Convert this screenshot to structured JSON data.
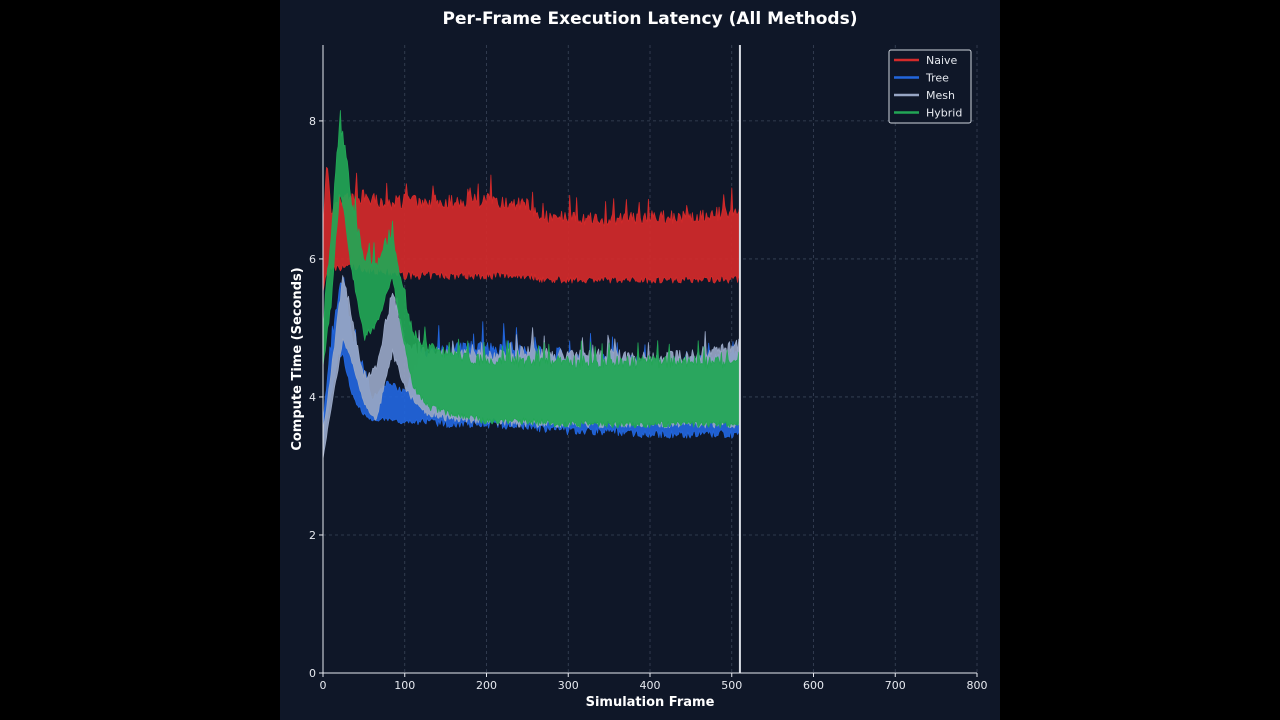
{
  "chart_data": {
    "type": "line",
    "title": "Per-Frame Execution Latency (All Methods)",
    "xlabel": "Simulation Frame",
    "ylabel": "Compute Time (Seconds)",
    "xlim": [
      0,
      800
    ],
    "ylim": [
      0,
      9.1
    ],
    "x_ticks": [
      0,
      100,
      200,
      300,
      400,
      500,
      600,
      700,
      800
    ],
    "y_ticks": [
      0,
      2,
      4,
      6,
      8
    ],
    "grid": true,
    "legend_position": "top-right",
    "current_frame_marker": 510,
    "colors": {
      "background": "#0f1728",
      "page": "#000000",
      "grid": "#3a4458",
      "axis": "#e6e9ef",
      "marker": "#d9dde5"
    },
    "series": [
      {
        "name": "Naive",
        "color": "#d42a2a",
        "x": [
          0,
          5,
          10,
          20,
          30,
          50,
          80,
          100,
          150,
          200,
          250,
          270,
          300,
          350,
          400,
          450,
          510
        ],
        "y_low": [
          5.5,
          5.7,
          5.8,
          5.8,
          5.85,
          5.8,
          5.75,
          5.7,
          5.7,
          5.7,
          5.7,
          5.65,
          5.65,
          5.65,
          5.65,
          5.65,
          5.65
        ],
        "y_high": [
          6.4,
          7.7,
          6.8,
          6.95,
          7.0,
          7.0,
          6.9,
          6.95,
          6.95,
          6.95,
          6.9,
          6.7,
          6.7,
          6.65,
          6.7,
          6.7,
          6.8
        ]
      },
      {
        "name": "Tree",
        "color": "#2266dd",
        "x": [
          0,
          10,
          20,
          25,
          35,
          50,
          60,
          80,
          100,
          120,
          150,
          200,
          250,
          300,
          350,
          400,
          450,
          510
        ],
        "y_low": [
          3.3,
          4.0,
          4.6,
          4.5,
          4.0,
          3.7,
          3.65,
          3.65,
          3.6,
          3.6,
          3.55,
          3.55,
          3.5,
          3.45,
          3.45,
          3.4,
          3.4,
          3.4
        ],
        "y_high": [
          3.7,
          4.8,
          5.7,
          5.8,
          5.0,
          4.5,
          4.0,
          4.3,
          4.1,
          4.7,
          4.8,
          4.85,
          4.8,
          4.7,
          4.65,
          4.6,
          4.6,
          4.7
        ]
      },
      {
        "name": "Mesh",
        "color": "#97a6c4",
        "x": [
          0,
          10,
          25,
          35,
          50,
          65,
          85,
          100,
          120,
          150,
          200,
          250,
          300,
          350,
          400,
          450,
          510
        ],
        "y_low": [
          3.1,
          3.8,
          4.8,
          4.5,
          3.9,
          3.6,
          4.6,
          4.1,
          3.75,
          3.65,
          3.6,
          3.55,
          3.55,
          3.55,
          3.55,
          3.55,
          3.55
        ],
        "y_high": [
          3.5,
          4.4,
          5.9,
          5.2,
          4.3,
          4.5,
          5.6,
          4.9,
          4.75,
          4.7,
          4.7,
          4.75,
          4.7,
          4.7,
          4.65,
          4.7,
          4.85
        ]
      },
      {
        "name": "Hybrid",
        "color": "#22a655",
        "x": [
          0,
          10,
          20,
          25,
          35,
          50,
          65,
          85,
          95,
          110,
          130,
          160,
          200,
          250,
          300,
          350,
          400,
          450,
          510
        ],
        "y_low": [
          4.4,
          5.3,
          6.9,
          6.7,
          5.8,
          4.8,
          5.0,
          5.7,
          5.0,
          4.1,
          3.8,
          3.7,
          3.6,
          3.6,
          3.55,
          3.55,
          3.55,
          3.55,
          3.55
        ],
        "y_high": [
          5.1,
          6.5,
          8.1,
          7.9,
          6.9,
          6.2,
          6.0,
          6.4,
          5.8,
          5.0,
          4.8,
          4.7,
          4.6,
          4.6,
          4.6,
          4.6,
          4.6,
          4.6,
          4.6
        ]
      }
    ]
  }
}
